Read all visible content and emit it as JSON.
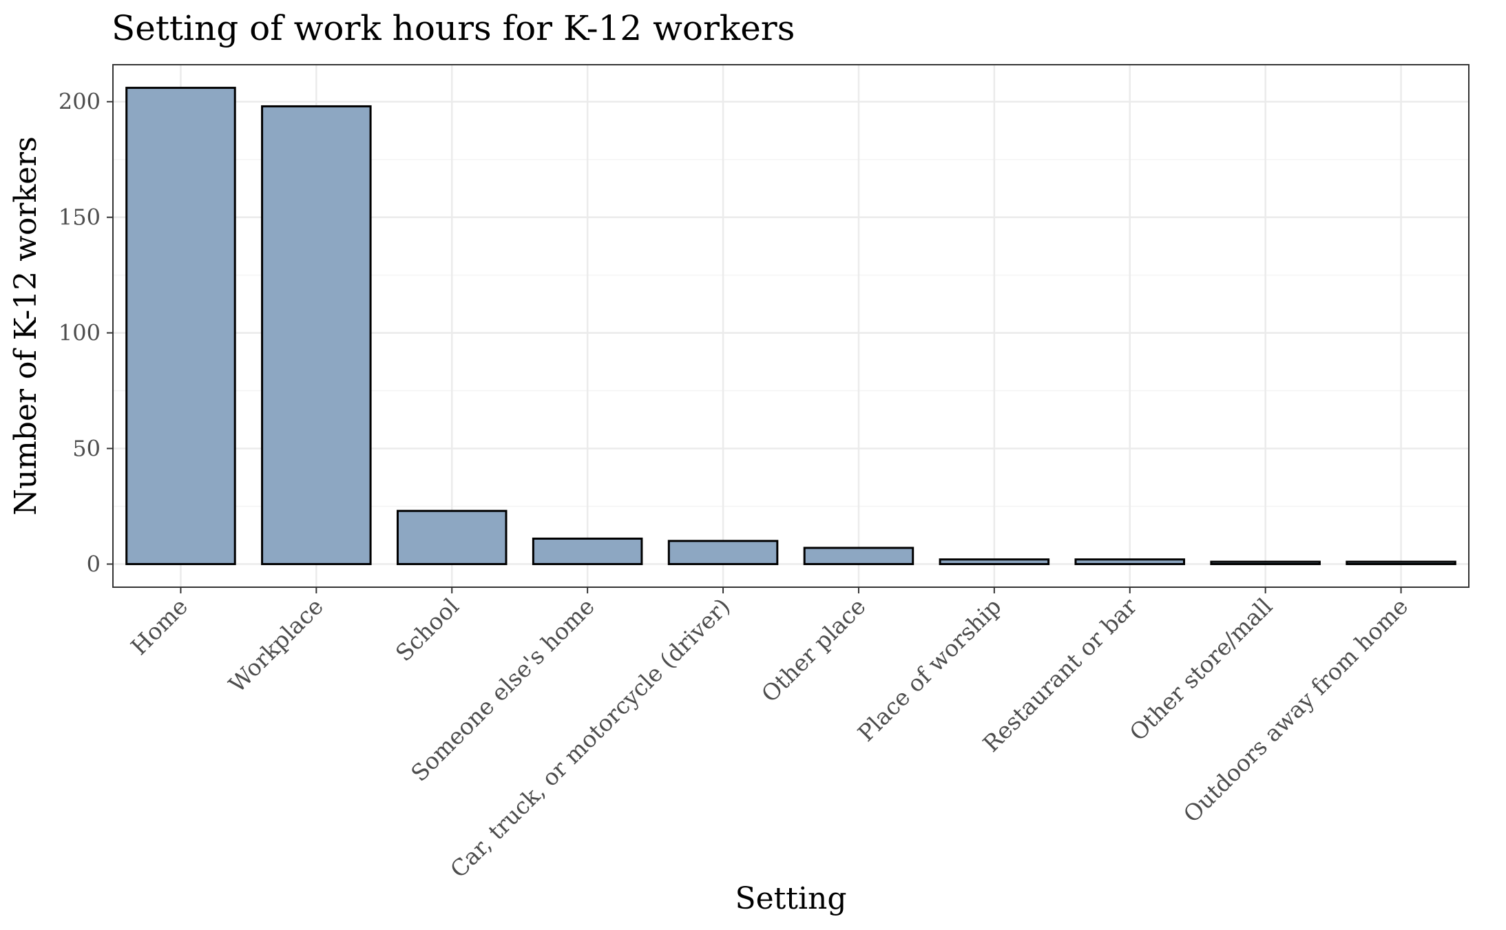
{
  "chart_data": {
    "type": "bar",
    "title": "Setting of work hours for K-12 workers",
    "xlabel": "Setting",
    "ylabel": "Number of K-12 workers",
    "categories": [
      "Home",
      "Workplace",
      "School",
      "Someone else's home",
      "Car, truck, or motorcycle (driver)",
      "Other place",
      "Place of worship",
      "Restaurant or bar",
      "Other store/mall",
      "Outdoors away from home"
    ],
    "values": [
      206,
      198,
      23,
      11,
      10,
      7,
      2,
      2,
      1,
      1
    ],
    "ylim": [
      -10,
      216
    ],
    "yticks": [
      0,
      50,
      100,
      150,
      200
    ],
    "grid": true,
    "legend": "none",
    "colors": {
      "bar_fill": "#8da7c2",
      "bar_stroke": "#000000",
      "grid_major": "#ebebeb",
      "grid_minor": "#f4f4f4",
      "panel_border": "#333333",
      "tick_text": "#4d4d4d"
    }
  }
}
